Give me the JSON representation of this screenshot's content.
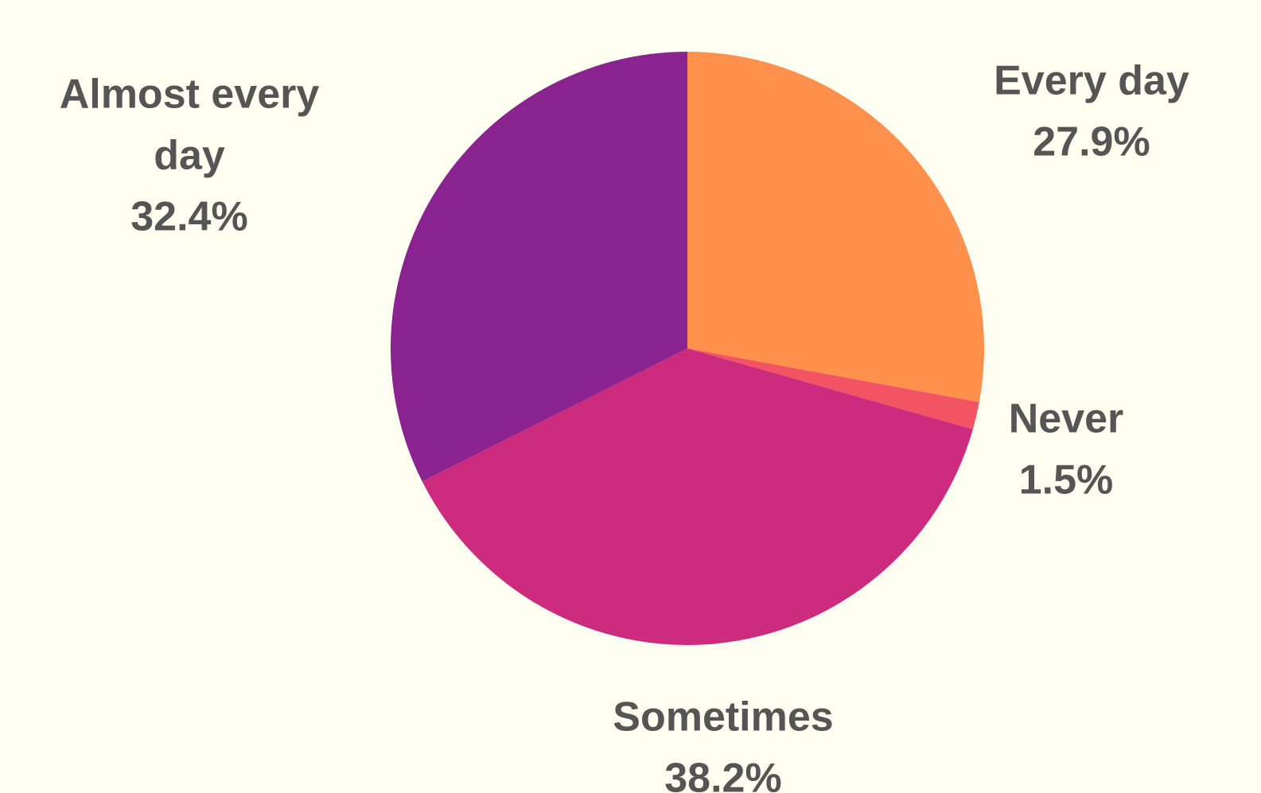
{
  "chart_data": {
    "type": "pie",
    "title": "",
    "start_angle_deg": 0,
    "direction": "clockwise",
    "label_color": "#555555",
    "background": "#fefff0",
    "slices": [
      {
        "label": "Every day",
        "label_lines": [
          "Every day"
        ],
        "value": 27.9,
        "value_label": "27.9%",
        "color": "#ff914d"
      },
      {
        "label": "Never",
        "label_lines": [
          "Never"
        ],
        "value": 1.5,
        "value_label": "1.5%",
        "color": "#f25464"
      },
      {
        "label": "Sometimes",
        "label_lines": [
          "Sometimes"
        ],
        "value": 38.2,
        "value_label": "38.2%",
        "color": "#cd2b7e"
      },
      {
        "label": "Almost every day",
        "label_lines": [
          "Almost every",
          "day"
        ],
        "value": 32.4,
        "value_label": "32.4%",
        "color": "#8a228f"
      }
    ]
  }
}
